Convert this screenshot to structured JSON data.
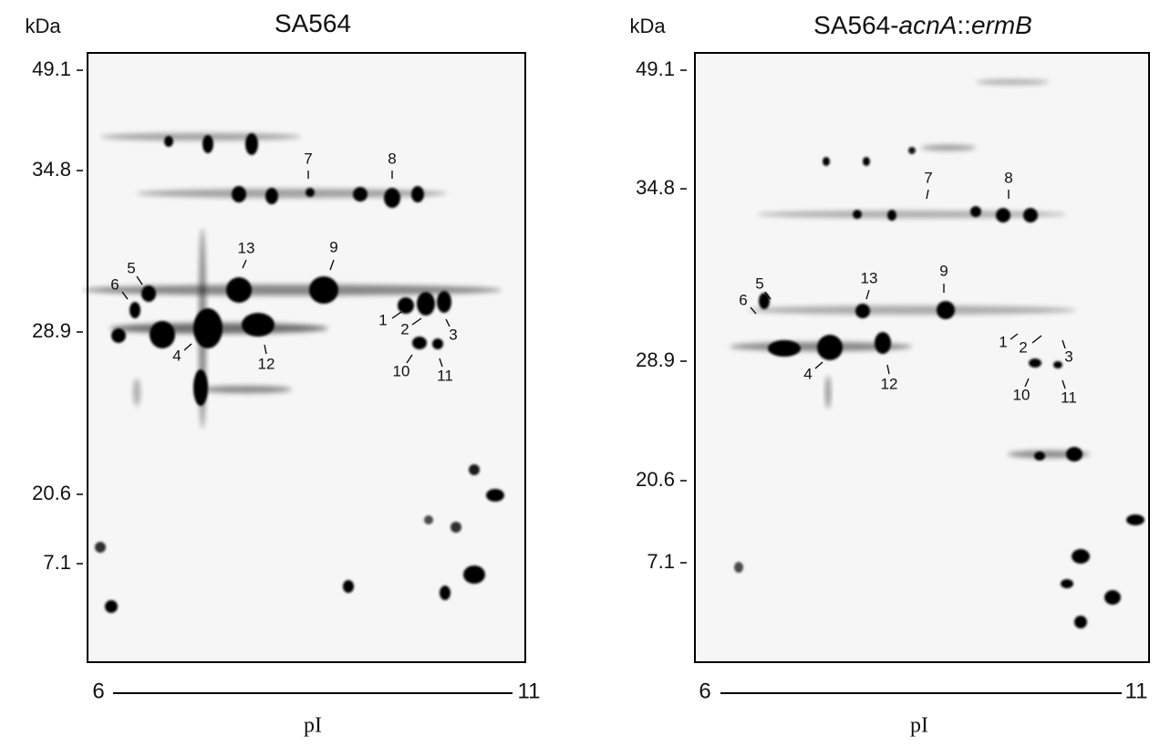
{
  "panels": [
    {
      "title": [
        {
          "text": "SA564"
        }
      ],
      "y_unit": "kDa",
      "y_labels": [
        "49.1",
        "34.8",
        "28.9",
        "20.6",
        "7.1"
      ],
      "x_ends": [
        "6",
        "11"
      ],
      "x_label": "pI",
      "spot_labels": [
        "7",
        "8",
        "13",
        "9",
        "5",
        "6",
        "1",
        "2",
        "3",
        "4",
        "12",
        "10",
        "11"
      ]
    },
    {
      "title": [
        {
          "text": "SA564-"
        },
        {
          "text": "acnA",
          "italic": true
        },
        {
          "text": "::"
        },
        {
          "text": "ermB",
          "italic": true
        }
      ],
      "y_unit": "kDa",
      "y_labels": [
        "49.1",
        "34.8",
        "28.9",
        "20.6",
        "7.1"
      ],
      "x_ends": [
        "6",
        "11"
      ],
      "x_label": "pI",
      "spot_labels": [
        "7",
        "8",
        "13",
        "9",
        "5",
        "6",
        "1",
        "2",
        "3",
        "4",
        "12",
        "10",
        "11"
      ]
    }
  ]
}
